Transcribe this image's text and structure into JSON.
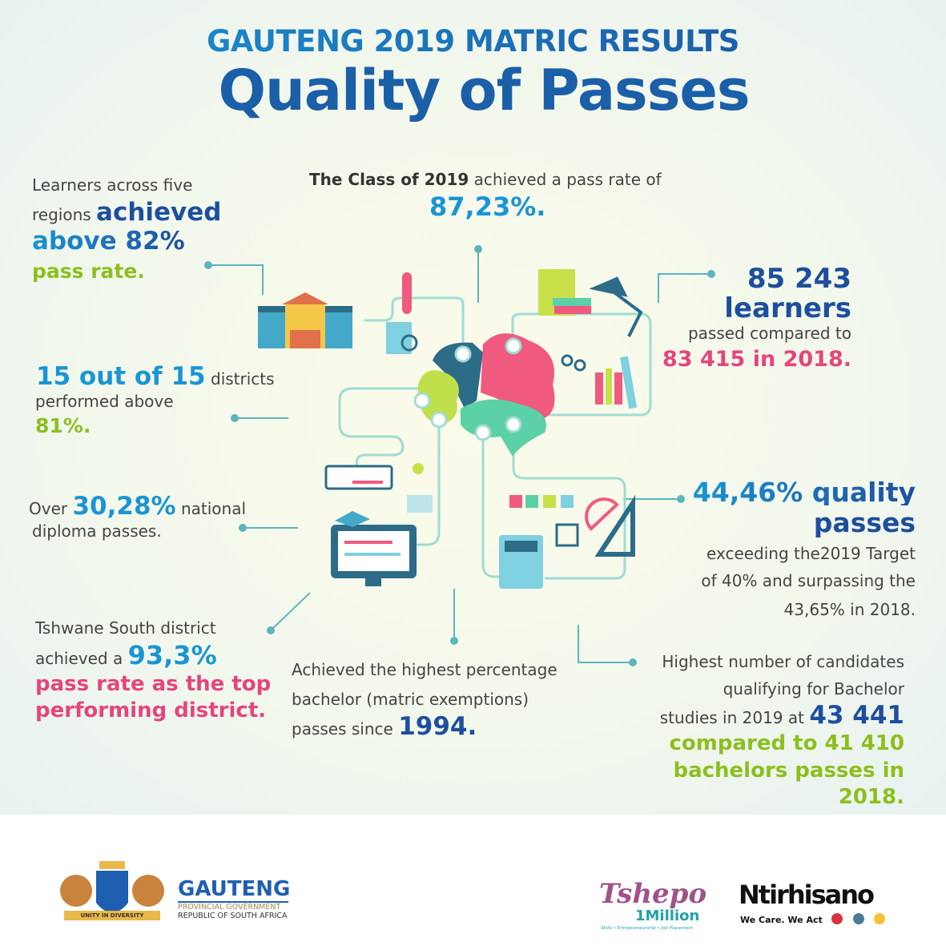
{
  "header": {
    "subtitle": "GAUTENG 2019 MATRIC RESULTS",
    "title": "Quality of Passes"
  },
  "stats": {
    "regions": {
      "line1": "Learners across five",
      "line2a": "regions ",
      "line2b": "achieved",
      "line3": "above 82%",
      "line4": "pass rate."
    },
    "pass_rate": {
      "line1a": "The Class of 2019",
      "line1b": " achieved a pass rate of",
      "value": "87,23%."
    },
    "learners": {
      "value": "85 243",
      "unit": "learners",
      "text": "passed compared to",
      "prev": "83 415 in 2018."
    },
    "districts": {
      "a": "15 out of 15",
      "b": " districts",
      "line2": "performed above",
      "value": "81%."
    },
    "diploma": {
      "a": "Over ",
      "value": "30,28%",
      "b": " national",
      "line2": "diploma passes."
    },
    "quality": {
      "line1": "44,46% quality",
      "line2": "passes",
      "line3": "exceeding the2019 Target",
      "line4": "of 40% and surpassing the",
      "line5": "43,65% in 2018."
    },
    "tshwane": {
      "line1": "Tshwane South district",
      "line2a": "achieved a ",
      "value": "93,3%",
      "line3": "pass rate as the top",
      "line4": "performing district."
    },
    "bachelor_1994": {
      "line1": "Achieved the highest percentage",
      "line2": "bachelor (matric exemptions)",
      "line3a": "passes since ",
      "year": "1994."
    },
    "bachelor_count": {
      "line1": "Highest number of candidates",
      "line2": "qualifying for Bachelor",
      "line3a": "studies in 2019 at ",
      "value": "43 441",
      "line4": "compared to 41 410",
      "line5": "bachelors passes in",
      "line6": "2018."
    }
  },
  "footer": {
    "gauteng": {
      "name": "GAUTENG",
      "line1": "PROVINCIAL GOVERNMENT",
      "line2": "REPUBLIC OF SOUTH AFRICA",
      "motto": "UNITY IN DIVERSITY"
    },
    "tshepo": {
      "name": "Tshepo",
      "sub": "1Million",
      "tagline": "Skills • Entrepreneurship • Job Placement"
    },
    "ntirhisano": {
      "name": "Ntirhisano",
      "tagline": "We Care. We Act"
    }
  },
  "colors": {
    "dark_blue": "#1d4f9e",
    "light_blue": "#1a95d4",
    "green": "#8cbf1e",
    "pink": "#e4457d",
    "teal": "#7fcfc8"
  }
}
